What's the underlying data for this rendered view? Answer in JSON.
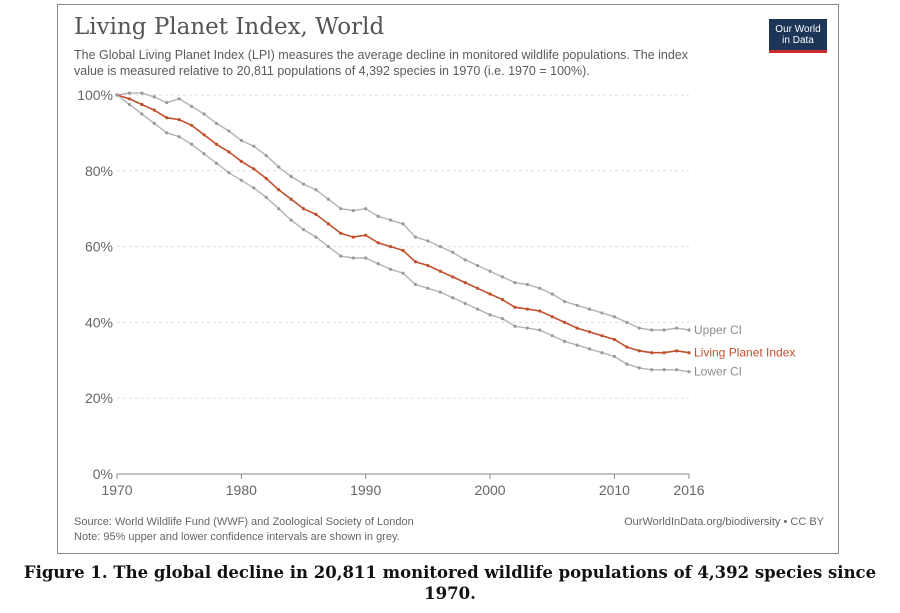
{
  "header": {
    "title": "Living Planet Index, World",
    "subtitle": "The Global Living Planet Index (LPI) measures the average decline in monitored wildlife populations. The index value is measured relative to 20,811 populations of 4,392 species in 1970 (i.e. 1970 = 100%).",
    "logo_line1": "Our World",
    "logo_line2": "in Data"
  },
  "footer": {
    "source": "Source: World Wildlife Fund (WWF) and Zoological Society of London",
    "note": "Note: 95% upper and lower confidence intervals are shown in grey.",
    "credit": "OurWorldInData.org/biodiversity • CC BY"
  },
  "caption": "Figure 1. The global decline in 20,811 monitored wildlife populations of 4,392 species since 1970.",
  "colors": {
    "lpi": "#c0502e",
    "ci": "#b3b3b3",
    "ci_marker": "#9a9a9a",
    "grid": "#dddddd"
  },
  "chart_data": {
    "type": "line",
    "x": [
      1970,
      1971,
      1972,
      1973,
      1974,
      1975,
      1976,
      1977,
      1978,
      1979,
      1980,
      1981,
      1982,
      1983,
      1984,
      1985,
      1986,
      1987,
      1988,
      1989,
      1990,
      1991,
      1992,
      1993,
      1994,
      1995,
      1996,
      1997,
      1998,
      1999,
      2000,
      2001,
      2002,
      2003,
      2004,
      2005,
      2006,
      2007,
      2008,
      2009,
      2010,
      2011,
      2012,
      2013,
      2014,
      2015,
      2016
    ],
    "xlim": [
      1970,
      2016
    ],
    "xticks": [
      "1970",
      "1980",
      "1990",
      "2000",
      "2010",
      "2016"
    ],
    "ylim": [
      0,
      100
    ],
    "yticks": [
      "0%",
      "20%",
      "40%",
      "60%",
      "80%",
      "100%"
    ],
    "grid": true,
    "series": [
      {
        "name": "Upper CI",
        "values": [
          100,
          100.5,
          100.5,
          99.5,
          98,
          99,
          97,
          95,
          92.5,
          90.5,
          88,
          86.5,
          84,
          81,
          78.5,
          76.5,
          75,
          72.5,
          70,
          69.5,
          70,
          68,
          67,
          66,
          62.5,
          61.5,
          60,
          58.5,
          56.5,
          55,
          53.5,
          52,
          50.5,
          50,
          49,
          47.5,
          45.5,
          44.5,
          43.5,
          42.5,
          41.5,
          40,
          38.5,
          38,
          38,
          38.5,
          38
        ]
      },
      {
        "name": "Living Planet Index",
        "values": [
          100,
          99,
          97.5,
          96,
          94,
          93.5,
          92,
          89.5,
          87,
          85,
          82.5,
          80.5,
          78,
          75,
          72.5,
          70,
          68.5,
          66,
          63.5,
          62.5,
          63,
          61,
          60,
          59,
          56,
          55,
          53.5,
          52,
          50.5,
          49,
          47.5,
          46,
          44,
          43.5,
          43,
          41.5,
          40,
          38.5,
          37.5,
          36.5,
          35.5,
          33.5,
          32.5,
          32,
          32,
          32.5,
          32
        ]
      },
      {
        "name": "Lower CI",
        "values": [
          100,
          97.5,
          95,
          92.5,
          90,
          89,
          87,
          84.5,
          82,
          79.5,
          77.5,
          75.5,
          73,
          70,
          67,
          64.5,
          62.5,
          60,
          57.5,
          57,
          57,
          55.5,
          54,
          53,
          50,
          49,
          48,
          46.5,
          45,
          43.5,
          42,
          41,
          39,
          38.5,
          38,
          36.5,
          35,
          34,
          33,
          32,
          31,
          29,
          28,
          27.5,
          27.5,
          27.5,
          27
        ]
      }
    ]
  }
}
